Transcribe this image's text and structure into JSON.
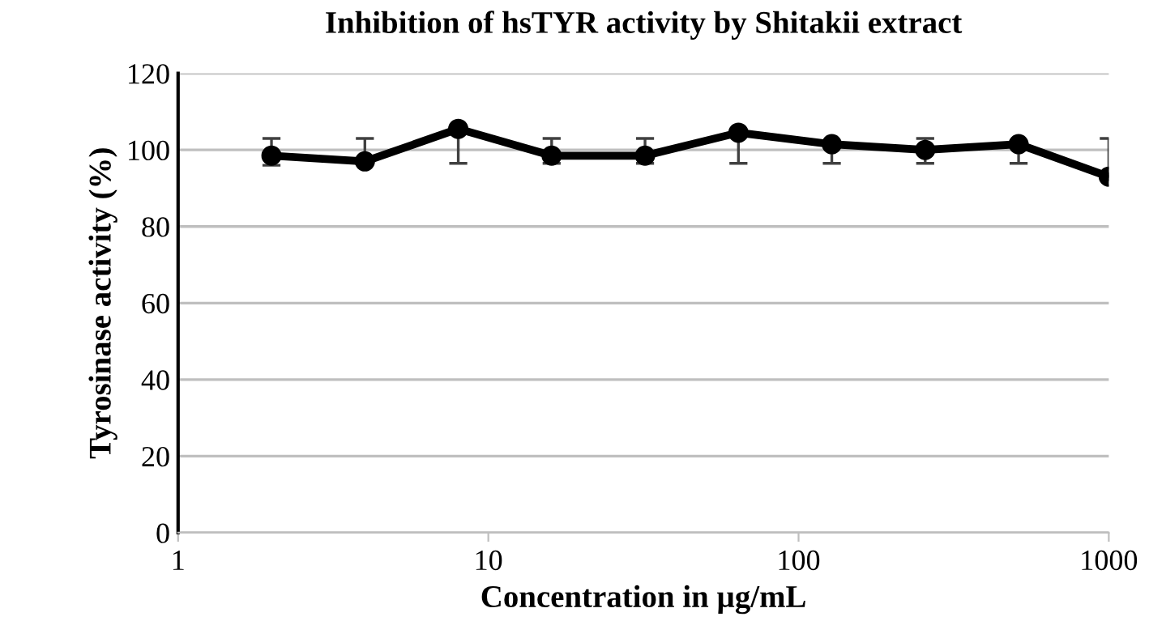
{
  "chart_data": {
    "type": "line",
    "title": "Inhibition of hsTYR activity by Shitakii extract",
    "xlabel": "Concentration in µg/mL",
    "ylabel": "Tyrosinase activity (%)",
    "x": [
      2,
      4,
      8,
      16,
      32,
      64,
      128,
      256,
      512,
      1000
    ],
    "series": [
      {
        "color": "#000000",
        "values": [
          98.5,
          97,
          105.5,
          98.5,
          98.5,
          104.5,
          101.5,
          100,
          101.5,
          93
        ],
        "errors": [
          [
            96,
            103
          ],
          [
            97,
            103
          ],
          [
            96.5,
            105.5
          ],
          [
            96.5,
            103
          ],
          [
            96.5,
            103
          ],
          [
            96.5,
            104.5
          ],
          [
            96.5,
            101.5
          ],
          [
            96.5,
            103
          ],
          [
            96.5,
            101.5
          ],
          [
            93,
            103
          ]
        ]
      }
    ],
    "log": "x",
    "xlim": [
      1,
      1000
    ],
    "xticks": [
      1,
      10,
      100,
      1000
    ],
    "ylim": [
      0,
      120
    ],
    "yticks": [
      0,
      20,
      40,
      60,
      80,
      100,
      120
    ],
    "grid": "y",
    "marker": "circle",
    "line_style": "solid"
  }
}
